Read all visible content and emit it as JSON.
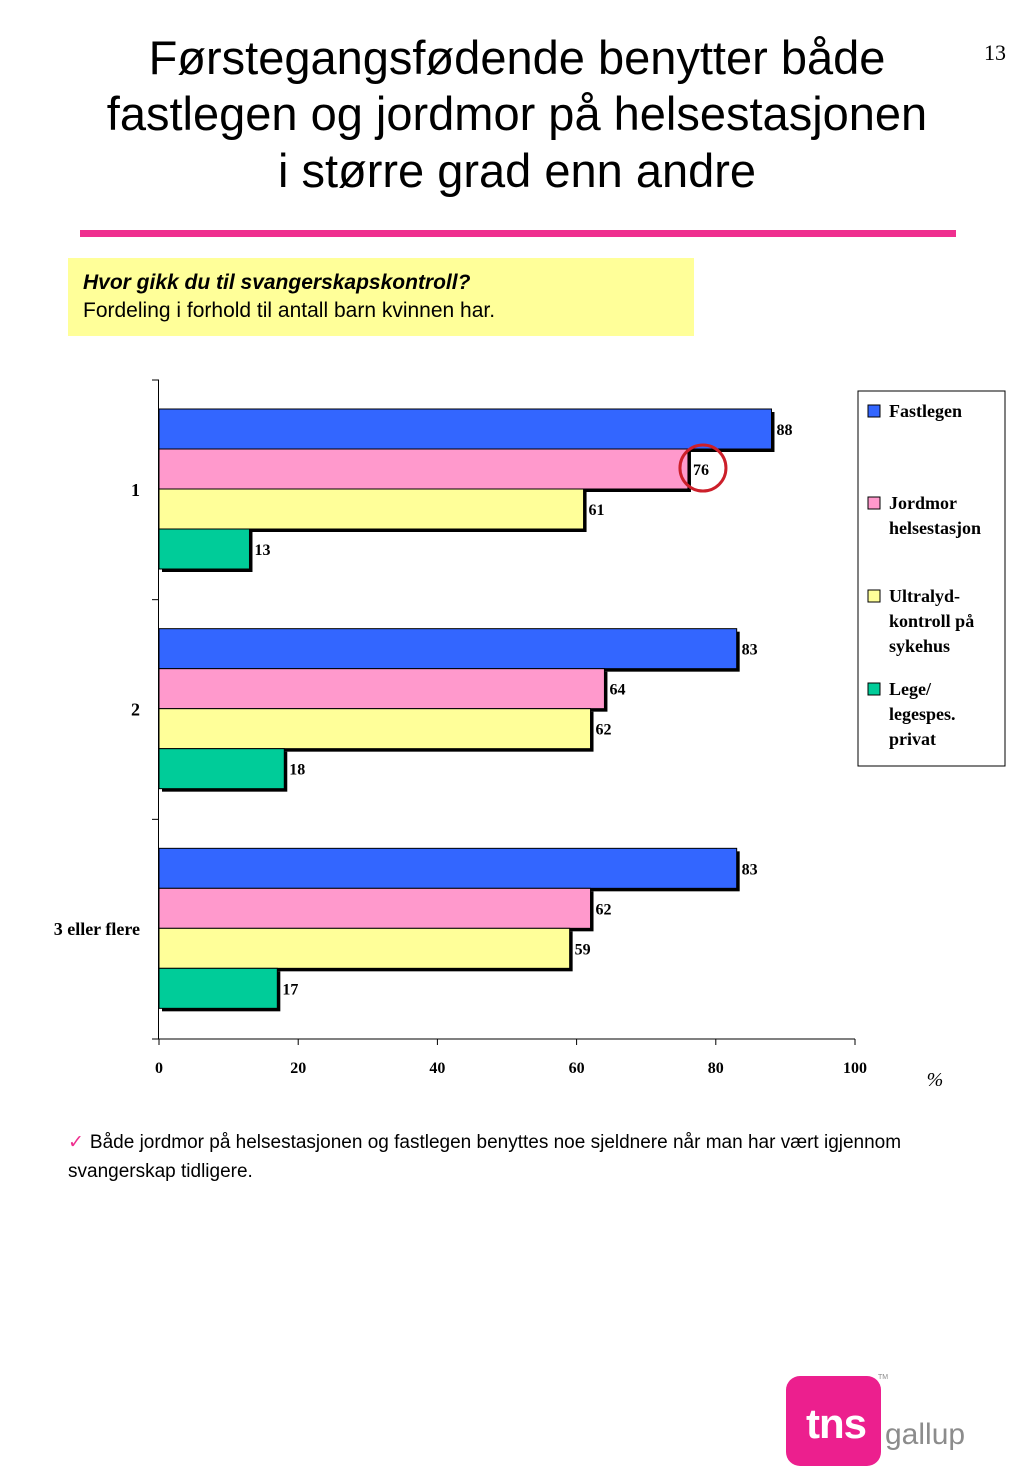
{
  "page_number": "13",
  "title_lines": [
    "Førstegangsfødende benytter både",
    "fastlegen og jordmor på helsestasjonen",
    "i større grad enn andre"
  ],
  "question": {
    "heading": "Hvor gikk du til svangerskapskontroll?",
    "subheading": "Fordeling i forhold til antall barn kvinnen har."
  },
  "colors": {
    "accent": "#ef2f8f",
    "question_bg": "#ffff99",
    "highlight_circle": "#cc1f2a"
  },
  "chart_data": {
    "type": "bar",
    "orientation": "horizontal",
    "categories": [
      "1",
      "2",
      "3 eller flere"
    ],
    "series": [
      {
        "name": "Fastlegen",
        "values": [
          88,
          83,
          83
        ],
        "color": "#3366ff"
      },
      {
        "name": "Jordmor helsestasjon",
        "legend_lines": [
          "Jordmor",
          "helsestasjon"
        ],
        "values": [
          76,
          64,
          62
        ],
        "color": "#ff99cc"
      },
      {
        "name": "Ultralyd-kontroll på sykehus",
        "legend_lines": [
          "Ultralyd-",
          "kontroll på",
          "sykehus"
        ],
        "values": [
          61,
          62,
          59
        ],
        "color": "#ffff99"
      },
      {
        "name": "Lege/legespes. privat",
        "legend_lines": [
          "Lege/",
          "legespes.",
          "privat"
        ],
        "values": [
          13,
          18,
          17
        ],
        "color": "#00cc99"
      }
    ],
    "xlim": [
      0,
      100
    ],
    "xticks": [
      0,
      20,
      40,
      60,
      80,
      100
    ],
    "xlabel": "%",
    "ylabel": "",
    "title": "",
    "grid": false,
    "legend_position": "right",
    "highlighted": {
      "series": "Jordmor helsestasjon",
      "category": "1",
      "value": 76
    }
  },
  "note": {
    "check_symbol": "✓",
    "text": "Både jordmor på helsestasjonen og fastlegen benyttes noe sjeldnere når man har vært igjennom svangerskap tidligere."
  },
  "logo": {
    "tns": "tns",
    "gallup": "gallup",
    "tm": "TM"
  }
}
